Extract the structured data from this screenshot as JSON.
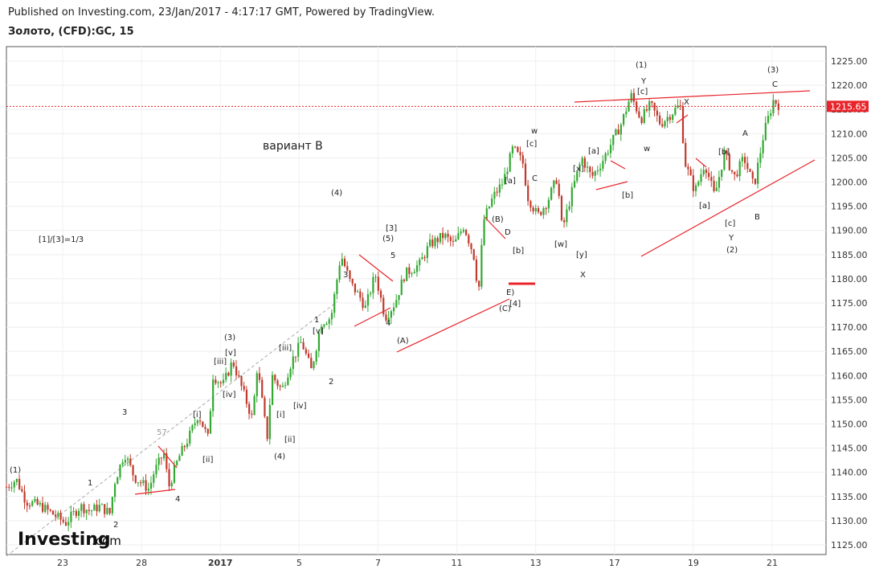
{
  "header": {
    "published": "Published on Investing.com, 23/Jan/2017 - 4:17:17 GMT, Powered by TradingView.",
    "symbol": "Золото, (CFD):GC, 15"
  },
  "logo": {
    "brand": "Investing",
    "suffix": ".com"
  },
  "colors": {
    "up": "#33a833",
    "down": "#c0392b",
    "trend": "#e8242a",
    "price": "#e8242a"
  },
  "chart_data": {
    "type": "candlestick",
    "title": "Золото, (CFD):GC, 15",
    "ylim": [
      1123,
      1228
    ],
    "y_ticks": [
      1125,
      1130,
      1135,
      1140,
      1145,
      1150,
      1155,
      1160,
      1165,
      1170,
      1175,
      1180,
      1185,
      1190,
      1195,
      1200,
      1205,
      1210,
      1215,
      1220,
      1225
    ],
    "y_tick_labels": [
      "1125.00",
      "1130.00",
      "1135.00",
      "1140.00",
      "1145.00",
      "1150.00",
      "1155.00",
      "1160.00",
      "1165.00",
      "1170.00",
      "1175.00",
      "1180.00",
      "1185.00",
      "1190.00",
      "1195.00",
      "1200.00",
      "1205.00",
      "1210.00",
      "1215.00",
      "1220.00",
      "1225.00"
    ],
    "x_ticks": [
      "23",
      "28",
      "2017",
      "5",
      "7",
      "11",
      "13",
      "17",
      "19",
      "21"
    ],
    "last_price": "1215.65",
    "price_path": [
      [
        0,
        1137
      ],
      [
        2,
        1138.5
      ],
      [
        4,
        1134
      ],
      [
        7,
        1133
      ],
      [
        10,
        1131
      ],
      [
        12,
        1129.5
      ],
      [
        15,
        1133
      ],
      [
        17,
        1132
      ],
      [
        19,
        1133
      ],
      [
        21,
        1131.5
      ],
      [
        22,
        1138
      ],
      [
        24,
        1144
      ],
      [
        26,
        1139
      ],
      [
        29,
        1136.5
      ],
      [
        30,
        1140
      ],
      [
        32,
        1144
      ],
      [
        33,
        1137
      ],
      [
        35,
        1143
      ],
      [
        37,
        1147
      ],
      [
        39,
        1152
      ],
      [
        41,
        1147
      ],
      [
        42,
        1160
      ],
      [
        44,
        1158
      ],
      [
        46,
        1163
      ],
      [
        48,
        1157
      ],
      [
        50,
        1151
      ],
      [
        51,
        1162
      ],
      [
        53,
        1147
      ],
      [
        54,
        1160
      ],
      [
        56,
        1157
      ],
      [
        58,
        1163
      ],
      [
        60,
        1167
      ],
      [
        62,
        1161
      ],
      [
        64,
        1171
      ],
      [
        66,
        1172
      ],
      [
        68,
        1185
      ],
      [
        70,
        1179
      ],
      [
        72,
        1176
      ],
      [
        73,
        1174
      ],
      [
        75,
        1181
      ],
      [
        77,
        1172
      ],
      [
        79,
        1175
      ],
      [
        81,
        1181
      ],
      [
        84,
        1183
      ],
      [
        86,
        1187
      ],
      [
        89,
        1189
      ],
      [
        91,
        1187
      ],
      [
        93,
        1191
      ],
      [
        95,
        1185
      ],
      [
        96,
        1177
      ],
      [
        97,
        1192
      ],
      [
        99,
        1197
      ],
      [
        101,
        1200
      ],
      [
        103,
        1207
      ],
      [
        105,
        1204
      ],
      [
        106,
        1197
      ],
      [
        108,
        1193
      ],
      [
        110,
        1196
      ],
      [
        112,
        1201
      ],
      [
        113,
        1190
      ],
      [
        115,
        1198
      ],
      [
        117,
        1205
      ],
      [
        119,
        1201
      ],
      [
        121,
        1204
      ],
      [
        123,
        1208
      ],
      [
        125,
        1212
      ],
      [
        127,
        1218
      ],
      [
        129,
        1213
      ],
      [
        131,
        1216
      ],
      [
        133,
        1212
      ],
      [
        135,
        1214
      ],
      [
        137,
        1216
      ],
      [
        138,
        1204
      ],
      [
        140,
        1198
      ],
      [
        142,
        1204
      ],
      [
        144,
        1197
      ],
      [
        146,
        1206
      ],
      [
        148,
        1201
      ],
      [
        150,
        1205
      ],
      [
        152,
        1199
      ],
      [
        154,
        1210
      ],
      [
        156,
        1217
      ],
      [
        157,
        1216
      ]
    ],
    "annotations": {
      "label_ratio": "[1]/[3]=1/3",
      "label_variant": "вариант B",
      "w1": "(1)",
      "w3": "(3)",
      "w4": "(4)",
      "wiii": "[iii]",
      "wv": "[v]",
      "wiv": "[iv]",
      "s3": "3",
      "s1": "1",
      "s2": "2",
      "s4": "4",
      "s57": "57",
      "wi": "[i]",
      "wii": "[ii]",
      "wii2": "[ii]",
      "wi2": "[i]",
      "wiii2": "[iii]",
      "wiv2": "[iv]",
      "wv2": "[v]",
      "s1b": "1",
      "s2b": "2",
      "s3b": "3",
      "s4b": "4",
      "s5b": "5",
      "w4b": "(4)",
      "w5": "[3]",
      "w5b": "(5)",
      "wA": "(A)",
      "wB": "(B)",
      "wC": "(C)",
      "wD": "D",
      "wE": "E)",
      "w4c": "[4]",
      "wa": "[a]",
      "wb": "[b]",
      "wc": "[c]",
      "ww": "w",
      "wc2": "C",
      "ww2": "[w]",
      "wx": "[x]",
      "wy": "[y]",
      "wa2": "[a]",
      "wb2": "[b]",
      "X1": "X",
      "t1": "(1)",
      "Y1": "Y",
      "c3": "[c]",
      "w3b": "w",
      "X2": "X",
      "a3": "[a]",
      "b3": "[b]",
      "c4": "[c]",
      "Y2": "Y",
      "t2": "(2)",
      "A": "A",
      "B": "B",
      "t3": "(3)",
      "C": "C"
    }
  }
}
